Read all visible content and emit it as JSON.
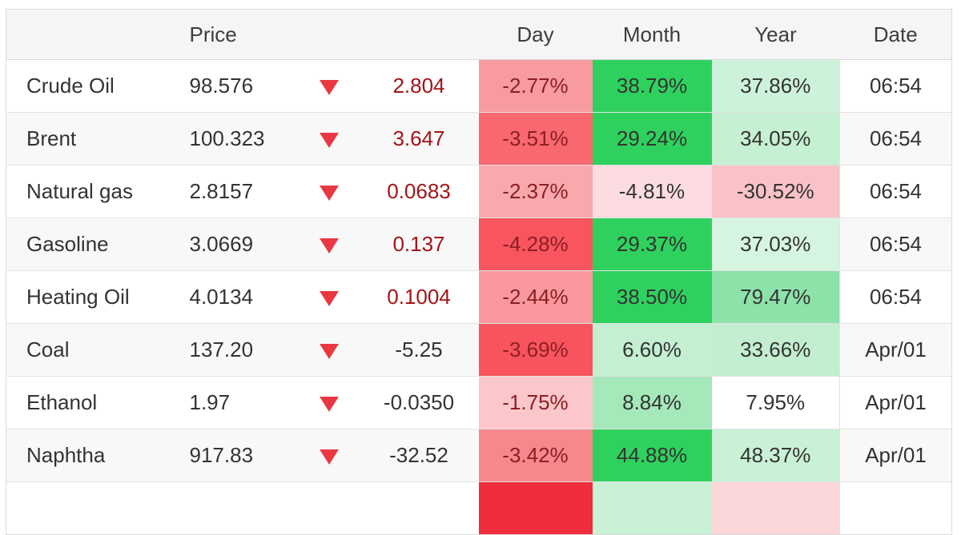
{
  "palette": {
    "triangle_red": "#e93842",
    "day_text_red": "#8c1e24",
    "change_red": "#a11419",
    "body_text": "#333333",
    "header_text": "#3d3d3d",
    "header_bg": "#f5f5f6",
    "stripe_bg": "#f8f8f8",
    "strong_green": "#2fd15e"
  },
  "table": {
    "headers": {
      "name": "",
      "price": "Price",
      "day": "Day",
      "month": "Month",
      "year": "Year",
      "date": "Date"
    },
    "rows": [
      {
        "name": "Crude Oil",
        "price": "98.576",
        "arrow": "down",
        "change": "2.804",
        "change_style": "red",
        "day": "-2.77%",
        "day_bg": "#f89ba1",
        "month": "38.79%",
        "month_bg": "#2fd15e",
        "year": "37.86%",
        "year_bg": "#cdf2da",
        "date": "06:54"
      },
      {
        "name": "Brent",
        "price": "100.323",
        "arrow": "down",
        "change": "3.647",
        "change_style": "red",
        "day": "-3.51%",
        "day_bg": "#f9686f",
        "month": "29.24%",
        "month_bg": "#2fd15e",
        "year": "34.05%",
        "year_bg": "#c5f0d2",
        "date": "06:54"
      },
      {
        "name": "Natural gas",
        "price": "2.8157",
        "arrow": "down",
        "change": "0.0683",
        "change_style": "red",
        "day": "-2.37%",
        "day_bg": "#f9a9ae",
        "month": "-4.81%",
        "month_bg": "#fcdce0",
        "year": "-30.52%",
        "year_bg": "#f9c2c7",
        "date": "06:54"
      },
      {
        "name": "Gasoline",
        "price": "3.0669",
        "arrow": "down",
        "change": "0.137",
        "change_style": "red",
        "day": "-4.28%",
        "day_bg": "#f8555e",
        "month": "29.37%",
        "month_bg": "#2fd15e",
        "year": "37.03%",
        "year_bg": "#d6f5e0",
        "date": "06:54"
      },
      {
        "name": "Heating Oil",
        "price": "4.0134",
        "arrow": "down",
        "change": "0.1004",
        "change_style": "red",
        "day": "-2.44%",
        "day_bg": "#f9999f",
        "month": "38.50%",
        "month_bg": "#2fd15e",
        "year": "79.47%",
        "year_bg": "#8ce2a9",
        "date": "06:54"
      },
      {
        "name": "Coal",
        "price": "137.20",
        "arrow": "down",
        "change": "-5.25",
        "change_style": "dark",
        "day": "-3.69%",
        "day_bg": "#f8545d",
        "month": "6.60%",
        "month_bg": "#c4efd1",
        "year": "33.66%",
        "year_bg": "#c2eecf",
        "date": "Apr/01"
      },
      {
        "name": "Ethanol",
        "price": "1.97",
        "arrow": "down",
        "change": "-0.0350",
        "change_style": "dark",
        "day": "-1.75%",
        "day_bg": "#fbc7cb",
        "month": "8.84%",
        "month_bg": "#a5e8ba",
        "year": "7.95%",
        "year_bg": "",
        "date": "Apr/01"
      },
      {
        "name": "Naphtha",
        "price": "917.83",
        "arrow": "down",
        "change": "-32.52",
        "change_style": "dark",
        "day": "-3.42%",
        "day_bg": "#f8868d",
        "month": "44.88%",
        "month_bg": "#2fd15e",
        "year": "48.37%",
        "year_bg": "#c9f1d6",
        "date": "Apr/01"
      },
      {
        "name": "",
        "price": "",
        "arrow": "none",
        "change": "",
        "change_style": "dark",
        "day": "",
        "day_bg": "#ee2d3d",
        "month": "",
        "month_bg": "#c9f1d6",
        "year": "",
        "year_bg": "#fbd7da",
        "date": ""
      }
    ]
  }
}
